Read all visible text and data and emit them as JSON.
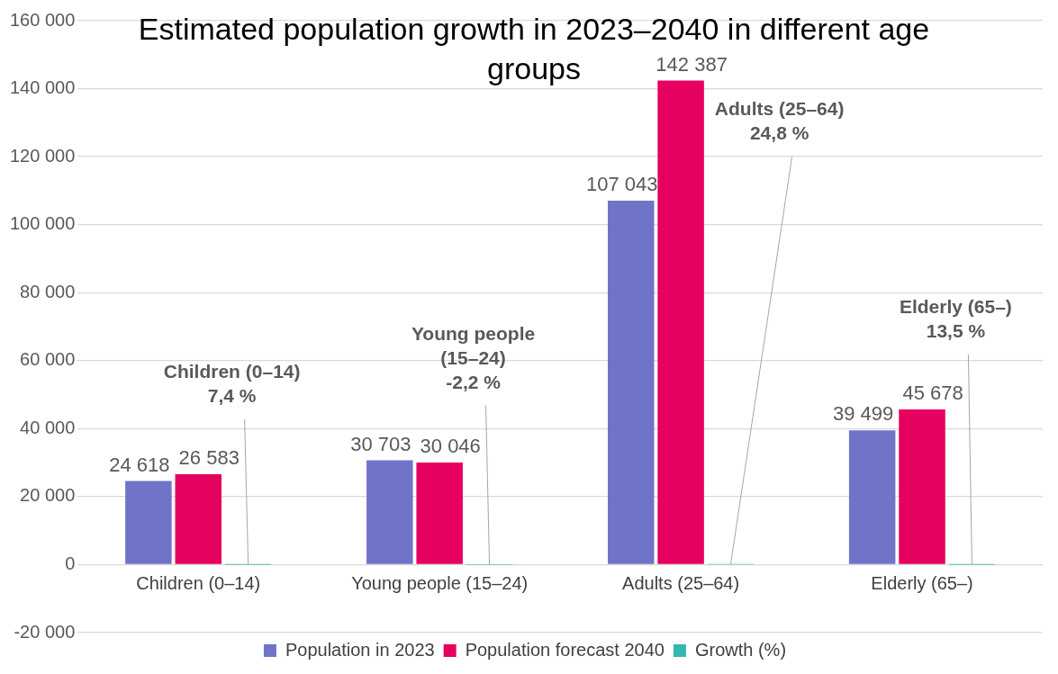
{
  "chart_data": {
    "type": "bar",
    "title": "Estimated population growth in 2023–2040 in different age groups",
    "categories": [
      "Children (0–14)",
      "Young people (15–24)",
      "Adults (25–64)",
      "Elderly (65–)"
    ],
    "series": [
      {
        "name": "Population in 2023",
        "color": "#7074c8",
        "values": [
          24618,
          30703,
          107043,
          39499
        ],
        "value_labels": [
          "24 618",
          "30 703",
          "107 043",
          "39 499"
        ]
      },
      {
        "name": "Population forecast 2040",
        "color": "#e6005f",
        "values": [
          26583,
          30046,
          142387,
          45678
        ],
        "value_labels": [
          "26 583",
          "30 046",
          "142 387",
          "45 678"
        ]
      },
      {
        "name": "Growth (%)",
        "color": "#35b8b0",
        "values": [
          7.4,
          -2.2,
          24.8,
          13.5
        ],
        "value_labels": [
          "Children (0–14)\n7,4 %",
          "Young people\n(15–24)\n-2,2 %",
          "Adults (25–64)\n24,8 %",
          "Elderly (65–)\n13,5 %"
        ]
      }
    ],
    "ylim": [
      -20000,
      160000
    ],
    "yticks": [
      {
        "value": -20000,
        "label": "-20 000"
      },
      {
        "value": 0,
        "label": "0"
      },
      {
        "value": 20000,
        "label": "20 000"
      },
      {
        "value": 40000,
        "label": "40 000"
      },
      {
        "value": 60000,
        "label": "60 000"
      },
      {
        "value": 80000,
        "label": "80 000"
      },
      {
        "value": 100000,
        "label": "100 000"
      },
      {
        "value": 120000,
        "label": "120 000"
      },
      {
        "value": 140000,
        "label": "140 000"
      },
      {
        "value": 160000,
        "label": "160 000"
      }
    ],
    "grid": "y",
    "legend": "bottom"
  }
}
